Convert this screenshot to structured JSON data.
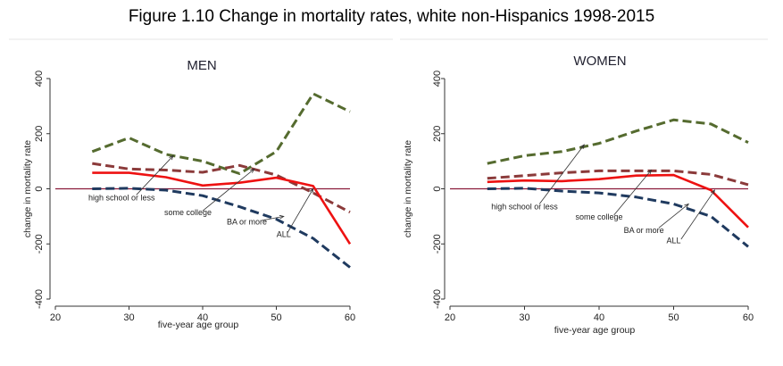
{
  "figure": {
    "title": "Figure 1.10 Change in mortality rates, white non-Hispanics 1998-2015"
  },
  "colors": {
    "hs_or_less": "#556b2f",
    "some_college": "#8b3a3a",
    "ba_or_more": "#1f3a5f",
    "all": "#ee1111",
    "zero_line": "#8b1a3a",
    "axis": "#333333"
  },
  "chart_data": [
    {
      "type": "line",
      "title": "MEN",
      "xlabel": "five-year age group",
      "ylabel": "change in mortality rate",
      "xlim": [
        20,
        60
      ],
      "ylim": [
        -400,
        400
      ],
      "xticks": [
        "20",
        "30",
        "40",
        "50",
        "60"
      ],
      "yticks": [
        "-400",
        "-200",
        "0",
        "200",
        "400"
      ],
      "x": [
        25,
        30,
        35,
        40,
        45,
        50,
        55,
        60
      ],
      "series": [
        {
          "key": "hs_or_less",
          "style": "dash",
          "values": [
            135,
            185,
            125,
            100,
            55,
            135,
            345,
            280
          ]
        },
        {
          "key": "some_college",
          "style": "dash",
          "values": [
            92,
            72,
            68,
            60,
            85,
            50,
            -15,
            -85
          ]
        },
        {
          "key": "ba_or_more",
          "style": "dash",
          "values": [
            0,
            2,
            -5,
            -25,
            -65,
            -110,
            -180,
            -285
          ]
        },
        {
          "key": "all",
          "style": "solid",
          "values": [
            58,
            58,
            42,
            12,
            22,
            40,
            10,
            -200
          ]
        }
      ],
      "annotations": [
        {
          "text": "high school or less",
          "tx": 29,
          "ty": -42,
          "ax": 31,
          "ay": -22,
          "hx": 36,
          "hy": 120
        },
        {
          "text": "some college",
          "tx": 38,
          "ty": -95,
          "ax": 40,
          "ay": -80,
          "hx": 47,
          "hy": 72
        },
        {
          "text": "BA or more",
          "tx": 46,
          "ty": -130,
          "ax": 48,
          "ay": -115,
          "hx": 51,
          "hy": -100
        },
        {
          "text": "ALL",
          "tx": 51,
          "ty": -175,
          "ax": 51.5,
          "ay": -160,
          "hx": 55,
          "hy": 0
        }
      ]
    },
    {
      "type": "line",
      "title": "WOMEN",
      "xlabel": "five-year age group",
      "ylabel": "change in mortality rate",
      "xlim": [
        20,
        60
      ],
      "ylim": [
        -400,
        400
      ],
      "xticks": [
        "20",
        "30",
        "40",
        "50",
        "60"
      ],
      "yticks": [
        "-400",
        "-200",
        "0",
        "200",
        "400"
      ],
      "x": [
        25,
        30,
        35,
        40,
        45,
        50,
        55,
        60
      ],
      "series": [
        {
          "key": "hs_or_less",
          "style": "dash",
          "values": [
            92,
            120,
            135,
            165,
            210,
            250,
            235,
            168
          ]
        },
        {
          "key": "some_college",
          "style": "dash",
          "values": [
            38,
            48,
            58,
            65,
            65,
            65,
            52,
            15
          ]
        },
        {
          "key": "ba_or_more",
          "style": "dash",
          "values": [
            0,
            2,
            -8,
            -15,
            -30,
            -55,
            -100,
            -210
          ]
        },
        {
          "key": "all",
          "style": "solid",
          "values": [
            25,
            30,
            28,
            35,
            48,
            50,
            -5,
            -140
          ]
        }
      ],
      "annotations": [
        {
          "text": "high school or less",
          "tx": 30,
          "ty": -75,
          "ax": 32,
          "ay": -55,
          "hx": 38,
          "hy": 160
        },
        {
          "text": "some college",
          "tx": 40,
          "ty": -112,
          "ax": 42,
          "ay": -95,
          "hx": 47,
          "hy": 68
        },
        {
          "text": "BA or more",
          "tx": 46,
          "ty": -160,
          "ax": 48,
          "ay": -142,
          "hx": 52,
          "hy": -55
        },
        {
          "text": "ALL",
          "tx": 50,
          "ty": -198,
          "ax": 51,
          "ay": -183,
          "hx": 55.5,
          "hy": -5
        }
      ]
    }
  ]
}
